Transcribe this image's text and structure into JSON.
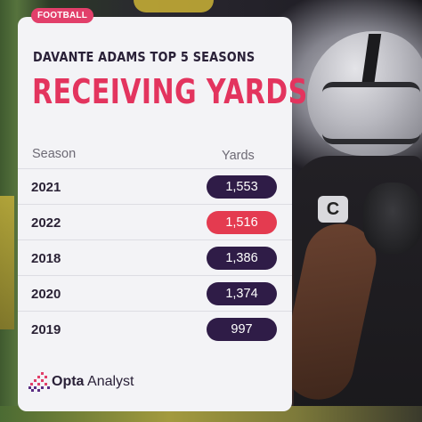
{
  "tag": "FOOTBALL",
  "title_small": "DAVANTE ADAMS TOP 5 SEASONS",
  "title_big": "RECEIVING YARDS",
  "table": {
    "headers": {
      "season": "Season",
      "yards": "Yards"
    },
    "rows": [
      {
        "season": "2021",
        "yards": "1,553",
        "highlight": false
      },
      {
        "season": "2022",
        "yards": "1,516",
        "highlight": true
      },
      {
        "season": "2018",
        "yards": "1,386",
        "highlight": false
      },
      {
        "season": "2020",
        "yards": "1,374",
        "highlight": false
      },
      {
        "season": "2019",
        "yards": "997",
        "highlight": false
      }
    ]
  },
  "brand": {
    "name_strong": "Opta",
    "name_rest": " Analyst",
    "icon": "opta-logo-icon"
  },
  "photo": {
    "badge": "C"
  },
  "colors": {
    "accent": "#e3345e",
    "tag": "#e23f6a",
    "pill_default": "#2f1c47",
    "pill_highlight": "#e43b50",
    "card": "#f3f3f6"
  }
}
